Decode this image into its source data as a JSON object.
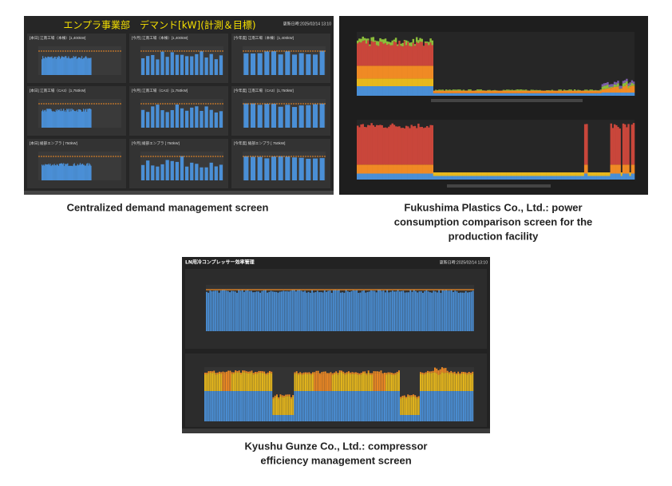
{
  "panels": [
    {
      "title": "エンプラ事業部　デマンド[kW](計測＆目標)",
      "updated": "更新日時:2025/02/14 13:10",
      "charts": [
        "[本日] 江南工場（本棟）[1,400kW]",
        "[今月] 江南工場（本棟）[1,400kW]",
        "[今年度] 江南工場（本棟）[1,400kW]",
        "[本日] 江南工場（CA3）[1,750kW]",
        "[今月] 江南工場（CA3）[1,750kW]",
        "[今年度] 江南工場（CA3）[1,750kW]",
        "[本日] 綾部エンプラ [ 750kW]",
        "[今月] 綾部エンプラ [ 750kW]",
        "[今年度] 綾部エンプラ [ 750kW]"
      ]
    },
    {
      "title": "LN用冷コンプレッサー効率管理",
      "updated": "更新日時:2025/02/14 13:10"
    }
  ],
  "captions": [
    [
      "Centralized demand management screen"
    ],
    [
      "Fukushima Plastics Co., Ltd.: power",
      "consumption comparison screen for the",
      "production facility"
    ],
    [
      "Kyushu Gunze Co., Ltd.: compressor",
      "efficiency management screen"
    ]
  ]
}
